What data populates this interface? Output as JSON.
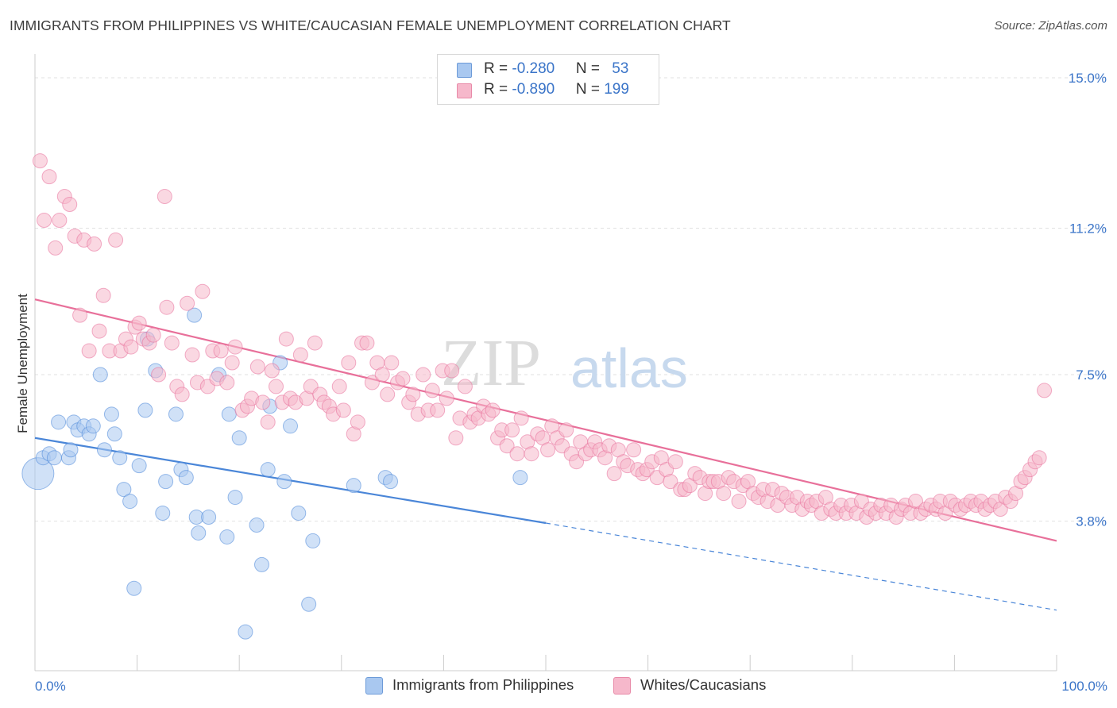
{
  "title": "IMMIGRANTS FROM PHILIPPINES VS WHITE/CAUCASIAN FEMALE UNEMPLOYMENT CORRELATION CHART",
  "source": "Source: ZipAtlas.com",
  "watermark": {
    "zip": "ZIP",
    "atlas": "atlas"
  },
  "legend": [
    {
      "r_label": "R = ",
      "r_value": "-0.280",
      "n_label": "N = ",
      "n_value": "53",
      "color": "#a9c8f0"
    },
    {
      "r_label": "R = ",
      "r_value": "-0.890",
      "n_label": "N = ",
      "n_value": "199",
      "color": "#f6b8cb"
    }
  ],
  "bottom_legend": [
    "Immigrants from Philippines",
    "Whites/Caucasians"
  ],
  "chart_data": {
    "type": "scatter",
    "title": "IMMIGRANTS FROM PHILIPPINES VS WHITE/CAUCASIAN FEMALE UNEMPLOYMENT CORRELATION CHART",
    "xlabel": "",
    "ylabel": "Female Unemployment",
    "xlim": [
      0,
      100
    ],
    "ylim": [
      0,
      15.4
    ],
    "x_tick_labels": [
      "0.0%",
      "100.0%"
    ],
    "y_ticks": [
      3.8,
      7.5,
      11.2,
      15.0
    ],
    "y_tick_labels": [
      "3.8%",
      "7.5%",
      "11.2%",
      "15.0%"
    ],
    "grid": true,
    "legend_position": "top-center",
    "series": [
      {
        "name": "Immigrants from Philippines",
        "color": "#4a86d8",
        "fill": "#a9c8f0",
        "trend": {
          "x0": 0,
          "y0": 5.9,
          "x1": 50,
          "y1": 3.75,
          "dashed_to": 100,
          "y_dashed_end": 1.55
        },
        "points": [
          [
            0.3,
            5.0,
            "big"
          ],
          [
            0.8,
            5.4
          ],
          [
            1.4,
            5.5
          ],
          [
            1.9,
            5.4
          ],
          [
            2.3,
            6.3
          ],
          [
            3.3,
            5.4
          ],
          [
            3.5,
            5.6
          ],
          [
            3.8,
            6.3
          ],
          [
            4.2,
            6.1
          ],
          [
            4.8,
            6.2
          ],
          [
            5.3,
            6.0
          ],
          [
            5.7,
            6.2
          ],
          [
            6.4,
            7.5
          ],
          [
            6.8,
            5.6
          ],
          [
            7.5,
            6.5
          ],
          [
            7.8,
            6.0
          ],
          [
            8.3,
            5.4
          ],
          [
            8.7,
            4.6
          ],
          [
            9.3,
            4.3
          ],
          [
            9.7,
            2.1
          ],
          [
            10.2,
            5.2
          ],
          [
            10.8,
            6.6
          ],
          [
            11.0,
            8.4
          ],
          [
            11.8,
            7.6
          ],
          [
            12.5,
            4.0
          ],
          [
            12.8,
            4.8
          ],
          [
            13.8,
            6.5
          ],
          [
            14.3,
            5.1
          ],
          [
            14.8,
            4.9
          ],
          [
            15.6,
            9.0
          ],
          [
            15.8,
            3.9
          ],
          [
            16.0,
            3.5
          ],
          [
            17.0,
            3.9
          ],
          [
            18.0,
            7.5
          ],
          [
            18.8,
            3.4
          ],
          [
            19.0,
            6.5
          ],
          [
            19.6,
            4.4
          ],
          [
            20.0,
            5.9
          ],
          [
            20.6,
            1.0
          ],
          [
            21.7,
            3.7
          ],
          [
            22.2,
            2.7
          ],
          [
            22.8,
            5.1
          ],
          [
            23.0,
            6.7
          ],
          [
            24.0,
            7.8
          ],
          [
            24.4,
            4.8
          ],
          [
            25.0,
            6.2
          ],
          [
            25.8,
            4.0
          ],
          [
            26.8,
            1.7
          ],
          [
            27.2,
            3.3
          ],
          [
            31.2,
            4.7
          ],
          [
            34.3,
            4.9
          ],
          [
            34.8,
            4.8
          ],
          [
            47.5,
            4.9
          ]
        ]
      },
      {
        "name": "Whites/Caucasians",
        "color": "#e8709a",
        "fill": "#f6b8cb",
        "trend": {
          "x0": 0,
          "y0": 9.4,
          "x1": 100,
          "y1": 3.3
        },
        "points": [
          [
            0.5,
            12.9
          ],
          [
            0.9,
            11.4
          ],
          [
            1.4,
            12.5
          ],
          [
            2.0,
            10.7
          ],
          [
            2.4,
            11.4
          ],
          [
            2.9,
            12.0
          ],
          [
            3.4,
            11.8
          ],
          [
            3.9,
            11.0
          ],
          [
            4.4,
            9.0
          ],
          [
            4.8,
            10.9
          ],
          [
            5.3,
            8.1
          ],
          [
            5.8,
            10.8
          ],
          [
            6.3,
            8.6
          ],
          [
            6.7,
            9.5
          ],
          [
            7.3,
            8.1
          ],
          [
            7.9,
            10.9
          ],
          [
            8.4,
            8.1
          ],
          [
            8.9,
            8.4
          ],
          [
            9.4,
            8.2
          ],
          [
            9.8,
            8.7
          ],
          [
            10.2,
            8.8
          ],
          [
            10.6,
            8.4
          ],
          [
            11.2,
            8.3
          ],
          [
            11.6,
            8.5
          ],
          [
            12.1,
            7.5
          ],
          [
            12.7,
            12.0
          ],
          [
            12.9,
            9.2
          ],
          [
            13.4,
            8.3
          ],
          [
            13.9,
            7.2
          ],
          [
            14.4,
            7.0
          ],
          [
            14.9,
            9.3
          ],
          [
            15.4,
            8.0
          ],
          [
            15.9,
            7.3
          ],
          [
            16.4,
            9.6
          ],
          [
            16.9,
            7.2
          ],
          [
            17.4,
            8.1
          ],
          [
            17.8,
            7.4
          ],
          [
            18.2,
            8.1
          ],
          [
            18.8,
            7.3
          ],
          [
            19.3,
            7.8
          ],
          [
            19.6,
            8.2
          ],
          [
            20.3,
            6.6
          ],
          [
            20.8,
            6.7
          ],
          [
            21.2,
            6.9
          ],
          [
            21.8,
            7.7
          ],
          [
            22.3,
            6.8
          ],
          [
            22.8,
            6.3
          ],
          [
            23.2,
            7.6
          ],
          [
            23.6,
            7.2
          ],
          [
            24.2,
            6.8
          ],
          [
            24.6,
            8.4
          ],
          [
            25.0,
            6.9
          ],
          [
            25.5,
            6.8
          ],
          [
            26.0,
            8.0
          ],
          [
            26.6,
            6.9
          ],
          [
            27.0,
            7.2
          ],
          [
            27.4,
            8.3
          ],
          [
            27.9,
            7.0
          ],
          [
            28.3,
            6.8
          ],
          [
            28.8,
            6.7
          ],
          [
            29.2,
            6.5
          ],
          [
            29.8,
            7.2
          ],
          [
            30.2,
            6.6
          ],
          [
            30.7,
            7.8
          ],
          [
            31.2,
            6.0
          ],
          [
            31.6,
            6.3
          ],
          [
            32.0,
            8.3
          ],
          [
            32.5,
            8.3
          ],
          [
            33.0,
            7.3
          ],
          [
            33.5,
            7.8
          ],
          [
            34.0,
            7.5
          ],
          [
            34.5,
            7.0
          ],
          [
            34.9,
            7.8
          ],
          [
            35.5,
            7.3
          ],
          [
            36.0,
            7.4
          ],
          [
            36.6,
            6.8
          ],
          [
            37.0,
            7.0
          ],
          [
            37.5,
            6.5
          ],
          [
            38.0,
            7.5
          ],
          [
            38.5,
            6.6
          ],
          [
            38.9,
            7.1
          ],
          [
            39.4,
            6.6
          ],
          [
            39.9,
            7.6
          ],
          [
            40.3,
            6.9
          ],
          [
            40.8,
            7.6
          ],
          [
            41.2,
            5.9
          ],
          [
            41.6,
            6.4
          ],
          [
            42.1,
            7.2
          ],
          [
            42.6,
            6.3
          ],
          [
            43.0,
            6.5
          ],
          [
            43.4,
            6.4
          ],
          [
            43.9,
            6.7
          ],
          [
            44.4,
            6.5
          ],
          [
            44.8,
            6.6
          ],
          [
            45.3,
            5.9
          ],
          [
            45.7,
            6.1
          ],
          [
            46.2,
            5.7
          ],
          [
            46.7,
            6.1
          ],
          [
            47.2,
            5.5
          ],
          [
            47.6,
            6.4
          ],
          [
            48.2,
            5.8
          ],
          [
            48.6,
            5.5
          ],
          [
            49.2,
            6.0
          ],
          [
            49.7,
            5.9
          ],
          [
            50.2,
            5.6
          ],
          [
            50.6,
            6.2
          ],
          [
            51.1,
            5.9
          ],
          [
            51.6,
            5.7
          ],
          [
            52.0,
            6.1
          ],
          [
            52.5,
            5.5
          ],
          [
            53.0,
            5.3
          ],
          [
            53.4,
            5.8
          ],
          [
            53.9,
            5.5
          ],
          [
            54.4,
            5.6
          ],
          [
            54.8,
            5.8
          ],
          [
            55.3,
            5.6
          ],
          [
            55.8,
            5.4
          ],
          [
            56.2,
            5.7
          ],
          [
            56.7,
            5.0
          ],
          [
            57.1,
            5.6
          ],
          [
            57.6,
            5.3
          ],
          [
            58.0,
            5.2
          ],
          [
            58.6,
            5.6
          ],
          [
            59.0,
            5.1
          ],
          [
            59.5,
            5.0
          ],
          [
            59.9,
            5.1
          ],
          [
            60.4,
            5.3
          ],
          [
            60.9,
            4.9
          ],
          [
            61.3,
            5.4
          ],
          [
            61.8,
            5.1
          ],
          [
            62.2,
            4.8
          ],
          [
            62.7,
            5.3
          ],
          [
            63.2,
            4.6
          ],
          [
            63.6,
            4.6
          ],
          [
            64.1,
            4.7
          ],
          [
            64.6,
            5.0
          ],
          [
            65.1,
            4.9
          ],
          [
            65.6,
            4.5
          ],
          [
            66.0,
            4.8
          ],
          [
            66.4,
            4.8
          ],
          [
            66.9,
            4.8
          ],
          [
            67.4,
            4.5
          ],
          [
            67.9,
            4.9
          ],
          [
            68.4,
            4.8
          ],
          [
            68.9,
            4.3
          ],
          [
            69.3,
            4.7
          ],
          [
            69.8,
            4.8
          ],
          [
            70.3,
            4.5
          ],
          [
            70.8,
            4.4
          ],
          [
            71.3,
            4.6
          ],
          [
            71.7,
            4.3
          ],
          [
            72.2,
            4.6
          ],
          [
            72.7,
            4.2
          ],
          [
            73.1,
            4.5
          ],
          [
            73.6,
            4.4
          ],
          [
            74.1,
            4.2
          ],
          [
            74.6,
            4.4
          ],
          [
            75.1,
            4.1
          ],
          [
            75.6,
            4.3
          ],
          [
            76.0,
            4.2
          ],
          [
            76.5,
            4.3
          ],
          [
            77.0,
            4.0
          ],
          [
            77.4,
            4.4
          ],
          [
            77.9,
            4.1
          ],
          [
            78.4,
            4.0
          ],
          [
            78.9,
            4.2
          ],
          [
            79.4,
            4.0
          ],
          [
            79.9,
            4.2
          ],
          [
            80.4,
            4.0
          ],
          [
            80.9,
            4.3
          ],
          [
            81.4,
            3.9
          ],
          [
            81.8,
            4.1
          ],
          [
            82.3,
            4.0
          ],
          [
            82.8,
            4.2
          ],
          [
            83.3,
            4.0
          ],
          [
            83.8,
            4.2
          ],
          [
            84.3,
            3.9
          ],
          [
            84.8,
            4.1
          ],
          [
            85.2,
            4.2
          ],
          [
            85.7,
            4.0
          ],
          [
            86.2,
            4.3
          ],
          [
            86.7,
            4.0
          ],
          [
            87.2,
            4.1
          ],
          [
            87.7,
            4.2
          ],
          [
            88.2,
            4.1
          ],
          [
            88.6,
            4.3
          ],
          [
            89.1,
            4.0
          ],
          [
            89.6,
            4.3
          ],
          [
            90.1,
            4.2
          ],
          [
            90.6,
            4.1
          ],
          [
            91.1,
            4.2
          ],
          [
            91.6,
            4.3
          ],
          [
            92.1,
            4.2
          ],
          [
            92.6,
            4.3
          ],
          [
            93.0,
            4.1
          ],
          [
            93.5,
            4.2
          ],
          [
            94.0,
            4.3
          ],
          [
            94.5,
            4.1
          ],
          [
            95.0,
            4.4
          ],
          [
            95.5,
            4.3
          ],
          [
            96.0,
            4.5
          ],
          [
            96.5,
            4.8
          ],
          [
            96.9,
            4.9
          ],
          [
            97.4,
            5.1
          ],
          [
            97.9,
            5.3
          ],
          [
            98.3,
            5.4
          ],
          [
            98.8,
            7.1
          ]
        ]
      }
    ]
  }
}
